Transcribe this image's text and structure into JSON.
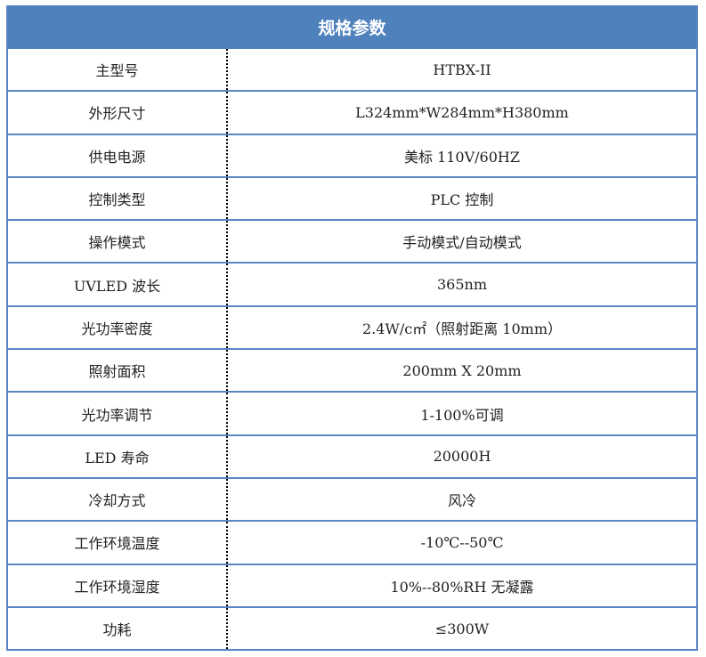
{
  "title": "规格参数",
  "rows": [
    [
      "主型号",
      "HTBX-II"
    ],
    [
      "外形尺寸",
      "L324mm*W284mm*H380mm"
    ],
    [
      "供电电源",
      "美标 110V/60HZ"
    ],
    [
      "控制类型",
      "PLC 控制"
    ],
    [
      "操作模式",
      "手动模式/自动模式"
    ],
    [
      "UVLED 波长",
      "365nm"
    ],
    [
      "光功率密度",
      "2.4W/c㎡（照射距离 10mm）"
    ],
    [
      "照射面积",
      "200mm X 20mm"
    ],
    [
      "光功率调节",
      "1-100%可调"
    ],
    [
      "LED 寿命",
      "20000H"
    ],
    [
      "冷却方式",
      "风冷"
    ],
    [
      "工作环境温度",
      "-10℃--50℃"
    ],
    [
      "工作环境湿度",
      "10%--80%RH 无凝露"
    ],
    [
      "功耗",
      "≤300W"
    ]
  ]
}
